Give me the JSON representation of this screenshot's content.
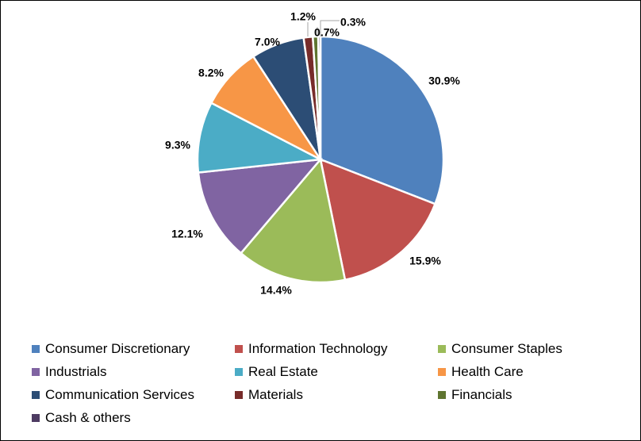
{
  "chart_data": {
    "type": "pie",
    "title": "",
    "legend_position": "bottom",
    "slices": [
      {
        "name": "Consumer Discretionary",
        "value": 30.9,
        "label": "30.9%",
        "color": "#4F81BD"
      },
      {
        "name": "Information Technology",
        "value": 15.9,
        "label": "15.9%",
        "color": "#C0504D"
      },
      {
        "name": "Consumer Staples",
        "value": 14.4,
        "label": "14.4%",
        "color": "#9BBB59"
      },
      {
        "name": "Industrials",
        "value": 12.1,
        "label": "12.1%",
        "color": "#8064A2"
      },
      {
        "name": "Real Estate",
        "value": 9.3,
        "label": "9.3%",
        "color": "#4BACC6"
      },
      {
        "name": "Health Care",
        "value": 8.2,
        "label": "8.2%",
        "color": "#F79646"
      },
      {
        "name": "Communication Services",
        "value": 7.0,
        "label": "7.0%",
        "color": "#2C4D75"
      },
      {
        "name": "Materials",
        "value": 1.2,
        "label": "1.2%",
        "color": "#772C2A"
      },
      {
        "name": "Financials",
        "value": 0.7,
        "label": "0.7%",
        "color": "#5F7530"
      },
      {
        "name": "Cash & others",
        "value": 0.3,
        "label": "0.3%",
        "color": "#4D3B62"
      }
    ]
  }
}
